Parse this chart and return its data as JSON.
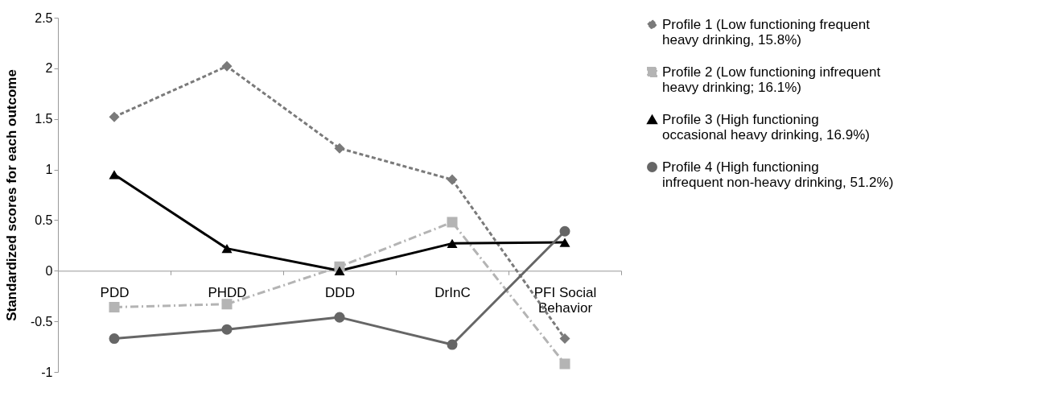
{
  "chart_data": {
    "type": "line",
    "ylabel": "Standardized scores for each outcome",
    "categories": [
      "PDD",
      "PHDD",
      "DDD",
      "DrInC",
      "PFI Social Behavior"
    ],
    "ylim": [
      -1,
      2.5
    ],
    "yticks": [
      -1,
      -0.5,
      0,
      0.5,
      1,
      1.5,
      2,
      2.5
    ],
    "grid": false,
    "legend": "right",
    "series": [
      {
        "name": "Profile 1 (Low functioning frequent heavy drinking, 15.8%)",
        "color": "#7a7a7a",
        "marker": "diamond",
        "line_style": "dashed",
        "values": [
          1.52,
          2.02,
          1.21,
          0.9,
          -0.67
        ]
      },
      {
        "name": "Profile 2 (Low functioning infrequent heavy drinking; 16.1%)",
        "color": "#b4b4b4",
        "marker": "square",
        "line_style": "dashdot",
        "values": [
          -0.36,
          -0.33,
          0.04,
          0.48,
          -0.92
        ]
      },
      {
        "name": "Profile 3 (High functioning occasional heavy drinking, 16.9%)",
        "color": "#000000",
        "marker": "triangle",
        "line_style": "solid",
        "values": [
          0.95,
          0.22,
          0,
          0.27,
          0.28
        ]
      },
      {
        "name": "Profile 4 (High functioning infrequent non-heavy drinking, 51.2%)",
        "color": "#666666",
        "marker": "circle",
        "line_style": "solid",
        "values": [
          -0.67,
          -0.58,
          -0.46,
          -0.73,
          0.39
        ]
      }
    ]
  }
}
